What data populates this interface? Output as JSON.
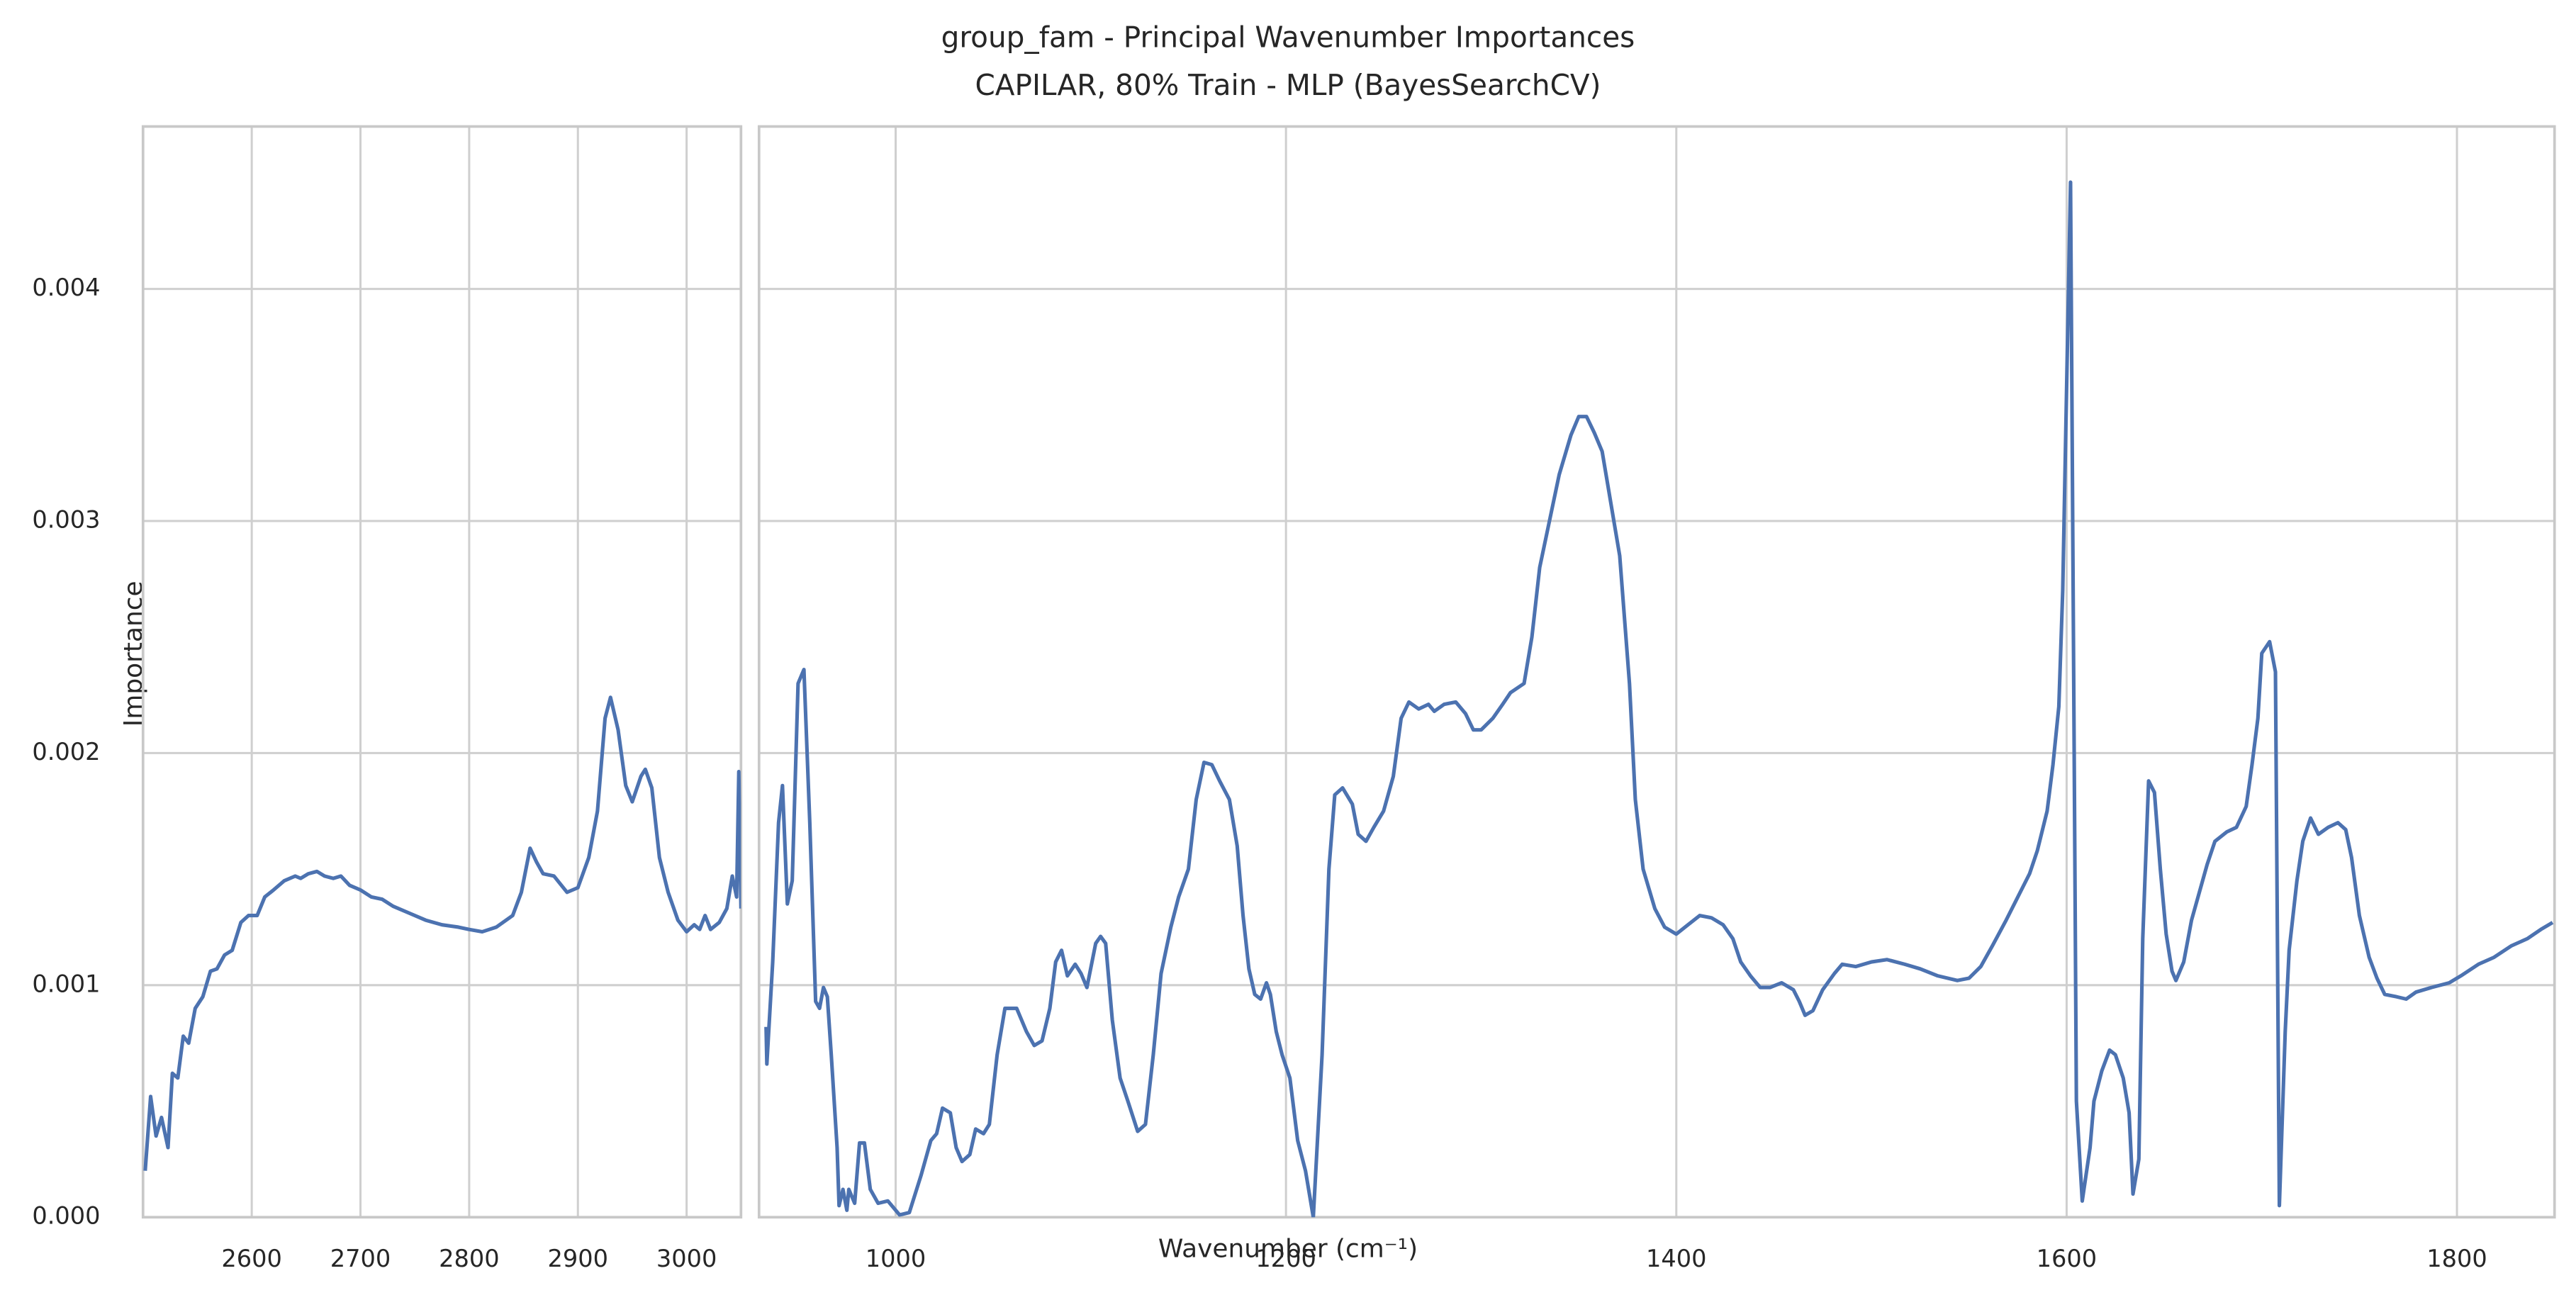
{
  "chart_data": [
    {
      "type": "line",
      "title": "group_fam - Principal Wavenumber Importances",
      "subtitle": "CAPILAR, 80% Train - MLP (BayesSearchCV)",
      "y_label": "Importance",
      "color": "#4c72b0",
      "grid": true,
      "ylim": [
        0,
        0.0047
      ],
      "yticks": [
        {
          "value": 0,
          "label": "0.000"
        },
        0.001,
        0.002,
        0.003,
        0.004
      ],
      "xlim": [
        2500,
        3050
      ],
      "xticks": [
        2600,
        2700,
        2800,
        2900,
        3000
      ],
      "x": [
        2502,
        2507,
        2512,
        2517,
        2523,
        2527,
        2532,
        2537,
        2542,
        2548,
        2555,
        2562,
        2568,
        2575,
        2582,
        2590,
        2597,
        2605,
        2612,
        2620,
        2630,
        2640,
        2645,
        2652,
        2660,
        2667,
        2675,
        2682,
        2690,
        2700,
        2710,
        2720,
        2730,
        2745,
        2760,
        2775,
        2790,
        2800,
        2812,
        2825,
        2840,
        2848,
        2856,
        2862,
        2868,
        2878,
        2890,
        2900,
        2910,
        2918,
        2925,
        2930,
        2937,
        2944,
        2950,
        2958,
        2962,
        2968,
        2975,
        2983,
        2992,
        3000,
        3007,
        3012,
        3017,
        3022,
        3030,
        3037,
        3042,
        3046,
        3048,
        3050
      ],
      "values": [
        0.0002,
        0.00052,
        0.00035,
        0.00043,
        0.0003,
        0.00062,
        0.0006,
        0.00078,
        0.00075,
        0.0009,
        0.00095,
        0.00106,
        0.00107,
        0.00113,
        0.00115,
        0.00127,
        0.0013,
        0.0013,
        0.00138,
        0.00141,
        0.00145,
        0.00147,
        0.00146,
        0.00148,
        0.00149,
        0.00147,
        0.00146,
        0.00147,
        0.00143,
        0.00141,
        0.00138,
        0.00137,
        0.00134,
        0.00131,
        0.00128,
        0.00126,
        0.00125,
        0.00124,
        0.00123,
        0.00125,
        0.0013,
        0.0014,
        0.00159,
        0.00153,
        0.00148,
        0.00147,
        0.0014,
        0.00142,
        0.00155,
        0.00175,
        0.00215,
        0.00224,
        0.0021,
        0.00186,
        0.00179,
        0.0019,
        0.00193,
        0.00185,
        0.00155,
        0.0014,
        0.00128,
        0.00123,
        0.00126,
        0.00124,
        0.0013,
        0.00124,
        0.00127,
        0.00133,
        0.00147,
        0.00138,
        0.00192,
        0.00133
      ]
    },
    {
      "type": "line",
      "x_label": "Wavenumber (cm⁻¹)",
      "color": "#4c72b0",
      "grid": true,
      "ylim": [
        0,
        0.0047
      ],
      "xlim": [
        930,
        1850
      ],
      "xticks": [
        1000,
        1200,
        1400,
        1600,
        1800
      ],
      "x": [
        933.6,
        934,
        937,
        940,
        942,
        944.5,
        947,
        950,
        953,
        956,
        959,
        961,
        963,
        965,
        967,
        970,
        971,
        973,
        975,
        976,
        979,
        981.5,
        984,
        987,
        991,
        996,
        1002,
        1007,
        1013,
        1018,
        1021,
        1024,
        1028,
        1031,
        1034,
        1038,
        1041,
        1045,
        1048,
        1052,
        1056,
        1062,
        1067,
        1071,
        1075,
        1079,
        1082,
        1085,
        1088,
        1092,
        1095,
        1098,
        1102.5,
        1105,
        1107.6,
        1111,
        1115,
        1119,
        1124,
        1128,
        1132,
        1136,
        1141,
        1145,
        1150,
        1154,
        1158,
        1162,
        1166,
        1171,
        1175,
        1178,
        1181,
        1184,
        1187,
        1190,
        1192,
        1195,
        1198,
        1202,
        1206,
        1210,
        1214,
        1218.5,
        1222,
        1225,
        1229,
        1234,
        1237,
        1241,
        1245,
        1250,
        1255,
        1259,
        1263,
        1268,
        1273,
        1276,
        1281,
        1287,
        1292,
        1296,
        1300,
        1306,
        1311,
        1315,
        1322,
        1326,
        1330,
        1335,
        1340,
        1346,
        1350,
        1354,
        1358,
        1362,
        1366,
        1371,
        1376,
        1379,
        1383,
        1389,
        1394,
        1400,
        1406,
        1412,
        1418,
        1424,
        1429,
        1433,
        1438,
        1443,
        1448,
        1454,
        1460,
        1463,
        1466,
        1470,
        1475,
        1481,
        1485,
        1492,
        1500,
        1508,
        1517,
        1525,
        1534,
        1544,
        1550,
        1556,
        1562,
        1569,
        1575,
        1581,
        1585,
        1590,
        1593,
        1596,
        1598,
        1602,
        1605,
        1608,
        1612,
        1614,
        1618,
        1622,
        1625,
        1629,
        1632,
        1634,
        1637,
        1639,
        1642,
        1645,
        1648,
        1651,
        1654,
        1656,
        1660,
        1664,
        1668,
        1672,
        1676,
        1682,
        1687,
        1692,
        1695,
        1698,
        1700,
        1704,
        1707,
        1709,
        1712,
        1714,
        1718,
        1721,
        1725,
        1729,
        1734,
        1739,
        1743,
        1746,
        1750,
        1755,
        1759,
        1763,
        1769,
        1774,
        1779,
        1787,
        1796,
        1802,
        1811,
        1819,
        1828,
        1836,
        1843,
        1849
      ],
      "values": [
        0.00082,
        0.00066,
        0.0011,
        0.0017,
        0.00186,
        0.00135,
        0.00145,
        0.0023,
        0.00236,
        0.0017,
        0.00093,
        0.0009,
        0.00099,
        0.00095,
        0.0007,
        0.0003,
        5e-05,
        0.00012,
        3e-05,
        0.00012,
        6e-05,
        0.00032,
        0.00032,
        0.00012,
        6e-05,
        7e-05,
        1e-05,
        2e-05,
        0.00018,
        0.00033,
        0.00036,
        0.00047,
        0.00045,
        0.0003,
        0.00024,
        0.00027,
        0.00038,
        0.00036,
        0.0004,
        0.0007,
        0.0009,
        0.0009,
        0.0008,
        0.00074,
        0.00076,
        0.0009,
        0.0011,
        0.00115,
        0.00104,
        0.00109,
        0.00105,
        0.00099,
        0.00118,
        0.00121,
        0.00118,
        0.00085,
        0.0006,
        0.0005,
        0.00037,
        0.0004,
        0.0007,
        0.00105,
        0.00125,
        0.00138,
        0.0015,
        0.0018,
        0.00196,
        0.00195,
        0.00188,
        0.0018,
        0.0016,
        0.0013,
        0.00107,
        0.00096,
        0.00094,
        0.00101,
        0.00096,
        0.0008,
        0.0007,
        0.0006,
        0.00033,
        0.0002,
        0,
        0.0007,
        0.0015,
        0.00182,
        0.00185,
        0.00178,
        0.00165,
        0.00162,
        0.00168,
        0.00175,
        0.0019,
        0.00215,
        0.00222,
        0.00219,
        0.00221,
        0.00218,
        0.00221,
        0.00222,
        0.00217,
        0.0021,
        0.0021,
        0.00215,
        0.00221,
        0.00226,
        0.0023,
        0.0025,
        0.0028,
        0.003,
        0.0032,
        0.00337,
        0.00345,
        0.00345,
        0.00338,
        0.0033,
        0.0031,
        0.00285,
        0.0023,
        0.0018,
        0.0015,
        0.00133,
        0.00125,
        0.00122,
        0.00126,
        0.0013,
        0.00129,
        0.00126,
        0.0012,
        0.0011,
        0.00104,
        0.00099,
        0.00099,
        0.00101,
        0.00098,
        0.00093,
        0.00087,
        0.00089,
        0.00098,
        0.00105,
        0.00109,
        0.00108,
        0.0011,
        0.00111,
        0.00109,
        0.00107,
        0.00104,
        0.00102,
        0.00103,
        0.00108,
        0.00117,
        0.00128,
        0.00138,
        0.00148,
        0.00158,
        0.00175,
        0.00195,
        0.0022,
        0.0027,
        0.00446,
        0.0005,
        7e-05,
        0.0003,
        0.0005,
        0.00063,
        0.00072,
        0.0007,
        0.0006,
        0.00045,
        0.0001,
        0.00025,
        0.0012,
        0.00188,
        0.00183,
        0.0015,
        0.00122,
        0.00106,
        0.00102,
        0.0011,
        0.00128,
        0.0014,
        0.00152,
        0.00162,
        0.00166,
        0.00168,
        0.00177,
        0.00195,
        0.00215,
        0.00243,
        0.00248,
        0.00235,
        5e-05,
        0.0008,
        0.00115,
        0.00145,
        0.00162,
        0.00172,
        0.00165,
        0.00168,
        0.0017,
        0.00167,
        0.00155,
        0.0013,
        0.00112,
        0.00103,
        0.00096,
        0.00095,
        0.00094,
        0.00097,
        0.00099,
        0.00101,
        0.00104,
        0.00109,
        0.00112,
        0.00117,
        0.0012,
        0.00124,
        0.00127
      ]
    }
  ]
}
